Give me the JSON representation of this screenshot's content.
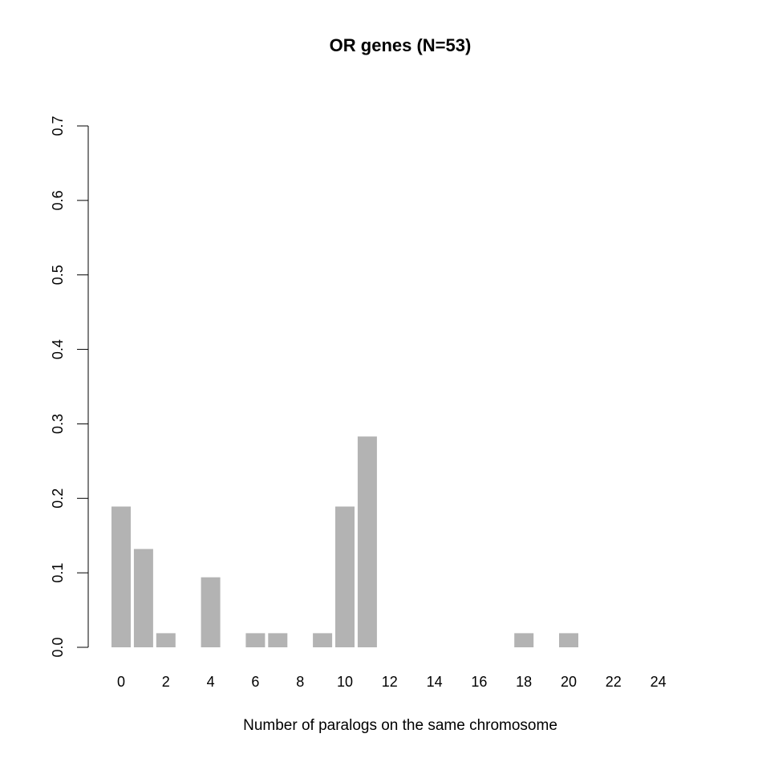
{
  "chart_data": {
    "type": "bar",
    "title": "OR genes (N=53)",
    "xlabel": "Number of paralogs on the same chromosome",
    "ylabel": "",
    "categories": [
      "0",
      "1",
      "2",
      "3",
      "4",
      "5",
      "6",
      "7",
      "8",
      "9",
      "10",
      "11",
      "12",
      "13",
      "14",
      "15",
      "16",
      "17",
      "18",
      "19",
      "20",
      "21",
      "22",
      "23",
      "24"
    ],
    "values": [
      0.189,
      0.132,
      0.019,
      0,
      0.094,
      0,
      0.019,
      0.019,
      0,
      0.019,
      0.189,
      0.283,
      0,
      0,
      0,
      0,
      0,
      0,
      0.019,
      0,
      0.019,
      0,
      0,
      0,
      0
    ],
    "x_tick_labels": [
      "0",
      "2",
      "4",
      "6",
      "8",
      "10",
      "12",
      "14",
      "16",
      "18",
      "20",
      "22",
      "24"
    ],
    "y_ticks": [
      0.0,
      0.1,
      0.2,
      0.3,
      0.4,
      0.5,
      0.6,
      0.7
    ],
    "y_tick_labels": [
      "0.0",
      "0.1",
      "0.2",
      "0.3",
      "0.4",
      "0.5",
      "0.6",
      "0.7"
    ],
    "ylim": [
      0,
      0.7
    ],
    "bar_color": "#b3b3b3",
    "grid": false
  }
}
